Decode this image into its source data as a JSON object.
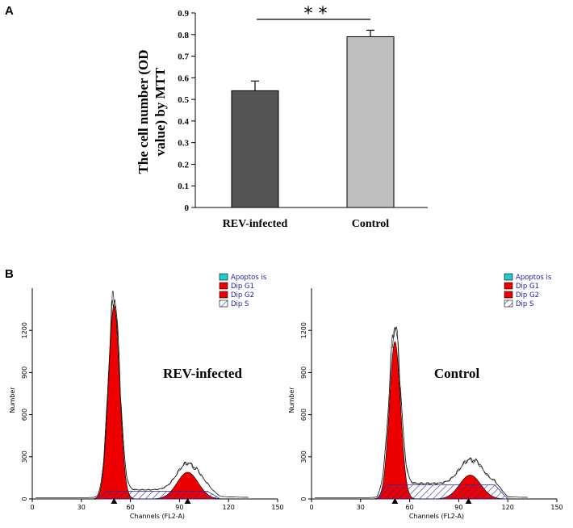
{
  "panel_a": {
    "label": "A"
  },
  "panel_b": {
    "label": "B"
  },
  "colors": {
    "rev_bar": "#555555",
    "control_bar": "#bfbfbf",
    "apoptosis": "#22cccc",
    "g1": "#ee0000",
    "g2": "#ee0000",
    "s_phase": "#2a2a9c"
  },
  "chart_data": [
    {
      "type": "bar",
      "panel": "A",
      "title": "",
      "xlabel": "",
      "ylabel": "The cell number (OD value) by MTT",
      "ylabel_lines": [
        "The cell number (OD",
        "value) by MTT"
      ],
      "categories": [
        "REV-infected",
        "Control"
      ],
      "values": [
        0.54,
        0.79
      ],
      "errors": [
        0.045,
        0.03
      ],
      "ylim": [
        0,
        0.9
      ],
      "yticks": [
        "0",
        "0.1",
        "0.2",
        "0.3",
        "0.4",
        "0.5",
        "0.6",
        "0.7",
        "0.8",
        "0.9"
      ],
      "significance": "* *",
      "grid": false
    },
    {
      "type": "area",
      "panel": "B-left",
      "annotation": "REV-infected",
      "xlabel": "Channels (FL2-A)",
      "ylabel": "Number",
      "xlim": [
        0,
        150
      ],
      "ylim": [
        0,
        1500
      ],
      "xticks": [
        "0",
        "30",
        "60",
        "90",
        "120",
        "150"
      ],
      "yticks": [
        "0",
        "300",
        "600",
        "900",
        "1200"
      ],
      "legend": [
        "Apoptos is",
        "Dip G1",
        "Dip G2",
        "Dip S"
      ],
      "legend_position": "top-right",
      "g1": {
        "peak_channel": 50,
        "peak_count": 1380,
        "sigma": 3.4
      },
      "g2": {
        "peak_channel": 95,
        "peak_count": 190,
        "sigma": 6.5
      },
      "s_phase": {
        "from": 40,
        "to": 115,
        "level": 55
      },
      "markers": [
        50,
        95
      ]
    },
    {
      "type": "area",
      "panel": "B-right",
      "annotation": "Control",
      "xlabel": "Channels (FL2-A)",
      "ylabel": "Number",
      "xlim": [
        0,
        150
      ],
      "ylim": [
        0,
        1500
      ],
      "xticks": [
        "0",
        "30",
        "60",
        "90",
        "120",
        "150"
      ],
      "yticks": [
        "0",
        "300",
        "600",
        "900",
        "1200"
      ],
      "legend": [
        "Apoptos is",
        "Dip G1",
        "Dip G2",
        "Dip S"
      ],
      "legend_position": "top-right",
      "g1": {
        "peak_channel": 51,
        "peak_count": 1120,
        "sigma": 3.4
      },
      "g2": {
        "peak_channel": 97,
        "peak_count": 170,
        "sigma": 6.5
      },
      "s_phase": {
        "from": 40,
        "to": 120,
        "level": 100
      },
      "markers": [
        51,
        96
      ]
    }
  ]
}
